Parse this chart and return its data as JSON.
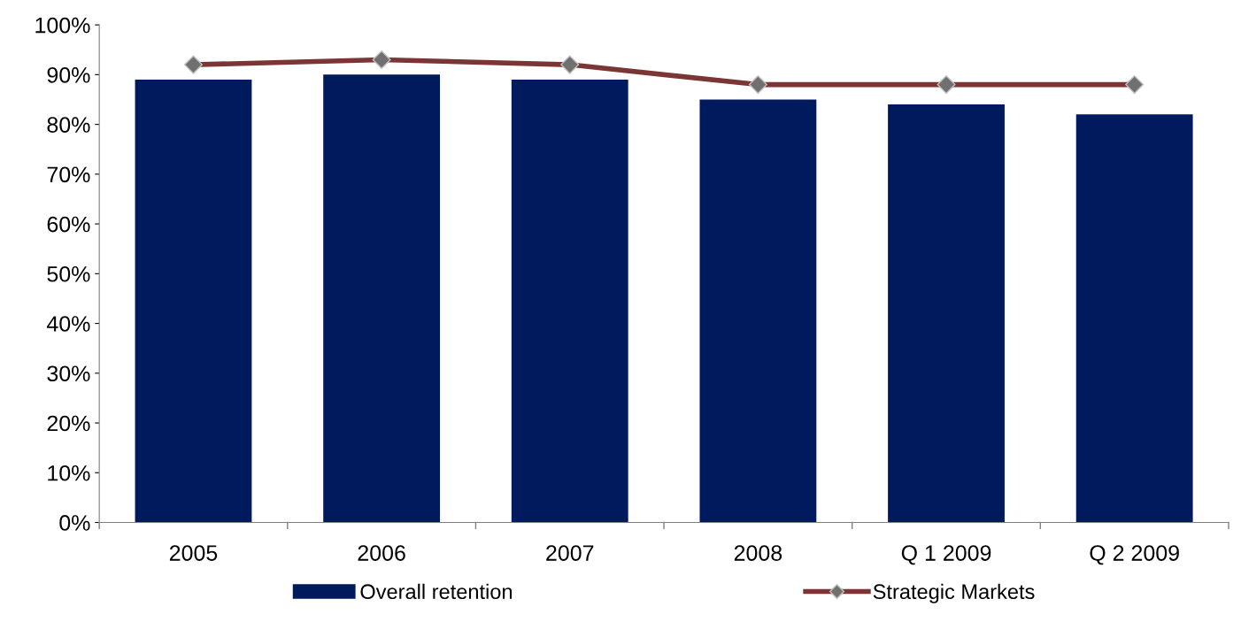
{
  "chart_data": {
    "type": "bar",
    "categories": [
      "2005",
      "2006",
      "2007",
      "2008",
      "Q 1 2009",
      "Q 2 2009"
    ],
    "series": [
      {
        "name": "Overall retention",
        "color": "#001a5e",
        "values": [
          89,
          90,
          89,
          85,
          84,
          82
        ]
      },
      {
        "name": "Strategic Markets",
        "type": "line",
        "color": "#7b3535",
        "values": [
          92,
          93,
          92,
          88,
          88,
          88
        ],
        "marker": "diamond"
      }
    ],
    "ylim": [
      0,
      100
    ],
    "yticks": [
      {
        "value": 0,
        "label": "0%"
      },
      {
        "value": 10,
        "label": "10%"
      },
      {
        "value": 20,
        "label": "20%"
      },
      {
        "value": 30,
        "label": "30%"
      },
      {
        "value": 40,
        "label": "40%"
      },
      {
        "value": 50,
        "label": "50%"
      },
      {
        "value": 60,
        "label": "60%"
      },
      {
        "value": 70,
        "label": "70%"
      },
      {
        "value": 80,
        "label": "80%"
      },
      {
        "value": 90,
        "label": "90%"
      },
      {
        "value": 100,
        "label": "100%"
      }
    ],
    "grid": false,
    "legend": "bottom"
  }
}
